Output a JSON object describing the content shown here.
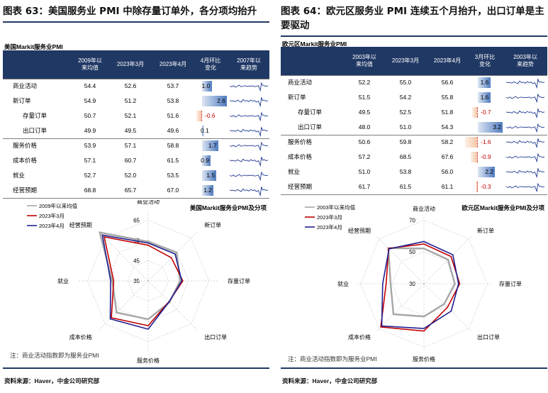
{
  "panels": [
    {
      "figure_title": "图表 63：美国服务业 PMI 中除存量订单外，各分项均抬升",
      "section_label": "美国Markit服务业PMI",
      "columns": [
        "",
        "2009年以\n来均值",
        "2023年3月",
        "2023年4月",
        "4月环比\n变化",
        "2007年以\n来趋势"
      ],
      "rows": [
        {
          "label": "商业活动",
          "avg": "54.4",
          "mar": "52.6",
          "apr": "53.7",
          "chg": "1.0",
          "chg_value": 1.0,
          "indent": false
        },
        {
          "label": "新订单",
          "avg": "54.9",
          "mar": "51.2",
          "apr": "53.8",
          "chg": "2.6",
          "chg_value": 2.6,
          "indent": false
        },
        {
          "label": "存量订单",
          "avg": "50.7",
          "mar": "52.1",
          "apr": "51.6",
          "chg": "-0.6",
          "chg_value": -0.6,
          "indent": true
        },
        {
          "label": "出口订单",
          "avg": "49.9",
          "mar": "49.5",
          "apr": "49.6",
          "chg": "0.1",
          "chg_value": 0.1,
          "indent": true
        },
        {
          "label": "服务价格",
          "avg": "53.9",
          "mar": "57.1",
          "apr": "58.8",
          "chg": "1.7",
          "chg_value": 1.7,
          "indent": false
        },
        {
          "label": "成本价格",
          "avg": "57.1",
          "mar": "60.7",
          "apr": "61.5",
          "chg": "0.9",
          "chg_value": 0.9,
          "indent": false
        },
        {
          "label": "就业",
          "avg": "52.7",
          "mar": "52.0",
          "apr": "53.5",
          "chg": "1.5",
          "chg_value": 1.5,
          "indent": false
        },
        {
          "label": "经营预期",
          "avg": "68.8",
          "mar": "65.7",
          "apr": "67.0",
          "chg": "1.2",
          "chg_value": 1.2,
          "indent": false
        }
      ],
      "chart_data": {
        "type": "radar",
        "title": "美国Markit服务业PMI及分项",
        "axes": [
          "商业活动",
          "新订单",
          "存量订单",
          "出口订单",
          "服务价格",
          "成本价格",
          "就业",
          "经营预期"
        ],
        "ticks": [
          35,
          45,
          55,
          65
        ],
        "rlim": [
          35,
          70
        ],
        "series": [
          {
            "name": "2009年以来均值",
            "color": "#a6a6a6",
            "values": [
              54.4,
              54.9,
              50.7,
              49.9,
              53.9,
              57.1,
              52.7,
              68.8
            ]
          },
          {
            "name": "2023年3月",
            "color": "#c00000",
            "values": [
              52.6,
              51.2,
              52.1,
              49.5,
              57.1,
              60.7,
              52.0,
              65.7
            ]
          },
          {
            "name": "2023年4月",
            "color": "#1f1f8f",
            "values": [
              53.7,
              53.8,
              51.6,
              49.6,
              58.8,
              61.5,
              53.5,
              67.0
            ]
          }
        ],
        "legend_position": "top-left"
      },
      "note": "注：商业活动指数即为服务业PMI",
      "source": "资料来源：Haver，中金公司研究部"
    },
    {
      "figure_title": "图表 64：欧元区服务业 PMI 连续五个月抬升，出口订单是主要驱动",
      "section_label": "欧元区Markit服务业PMI",
      "columns": [
        "",
        "2003年以\n来均值",
        "2023年3月",
        "2023年4月",
        "3月环比\n变化",
        "2003年以\n来趋势"
      ],
      "rows": [
        {
          "label": "商业活动",
          "avg": "52.2",
          "mar": "55.0",
          "apr": "56.6",
          "chg": "1.6",
          "chg_value": 1.6,
          "indent": false
        },
        {
          "label": "新订单",
          "avg": "51.5",
          "mar": "54.2",
          "apr": "55.8",
          "chg": "1.6",
          "chg_value": 1.6,
          "indent": false
        },
        {
          "label": "存量订单",
          "avg": "49.5",
          "mar": "52.5",
          "apr": "51.8",
          "chg": "-0.7",
          "chg_value": -0.7,
          "indent": true
        },
        {
          "label": "出口订单",
          "avg": "48.0",
          "mar": "51.0",
          "apr": "54.3",
          "chg": "3.2",
          "chg_value": 3.2,
          "indent": true
        },
        {
          "label": "服务价格",
          "avg": "50.6",
          "mar": "59.8",
          "apr": "58.2",
          "chg": "-1.6",
          "chg_value": -1.6,
          "indent": false
        },
        {
          "label": "成本价格",
          "avg": "57.2",
          "mar": "68.5",
          "apr": "67.6",
          "chg": "-0.9",
          "chg_value": -0.9,
          "indent": false
        },
        {
          "label": "就业",
          "avg": "51.0",
          "mar": "53.8",
          "apr": "56.0",
          "chg": "2.2",
          "chg_value": 2.2,
          "indent": false
        },
        {
          "label": "经营预期",
          "avg": "61.7",
          "mar": "61.5",
          "apr": "61.1",
          "chg": "-0.3",
          "chg_value": -0.3,
          "indent": false
        }
      ],
      "chart_data": {
        "type": "radar",
        "title": "欧元区Markit服务业PMI及分项",
        "axes": [
          "商业活动",
          "新订单",
          "存量订单",
          "出口订单",
          "服务价格",
          "成本价格",
          "就业",
          "经营预期"
        ],
        "ticks": [
          30,
          50,
          70
        ],
        "rlim": [
          30,
          72
        ],
        "series": [
          {
            "name": "2003年以来均值",
            "color": "#a6a6a6",
            "values": [
              52.2,
              51.5,
              49.5,
              48.0,
              50.6,
              57.2,
              51.0,
              61.7
            ]
          },
          {
            "name": "2023年3月",
            "color": "#c00000",
            "values": [
              55.0,
              54.2,
              52.5,
              51.0,
              59.8,
              68.5,
              53.8,
              61.5
            ]
          },
          {
            "name": "2023年4月",
            "color": "#1f1f8f",
            "values": [
              56.6,
              55.8,
              51.8,
              54.3,
              58.2,
              67.6,
              56.0,
              61.1
            ]
          }
        ],
        "legend_position": "top-left"
      },
      "note": "注：商业活动指数即为服务业PMI",
      "source": "资料来源：Haver，中金公司研究部"
    }
  ]
}
